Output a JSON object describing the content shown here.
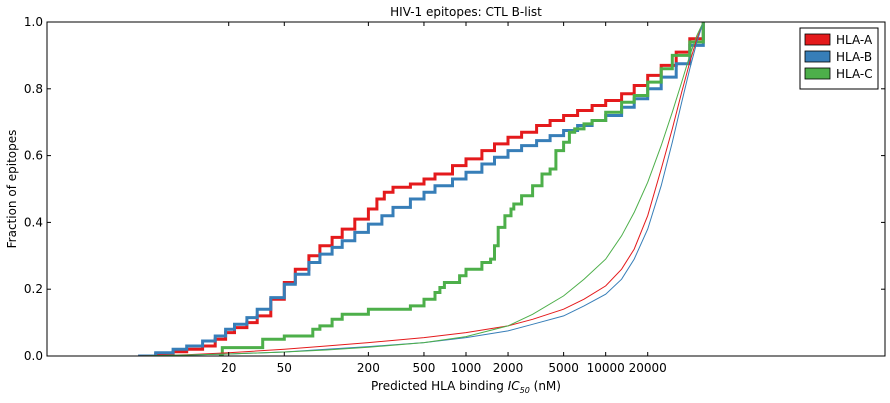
{
  "chart_data": {
    "type": "line",
    "title": "HIV-1 epitopes: CTL B-list",
    "xlabel_prefix": "Predicted HLA binding ",
    "xlabel_math": "IC",
    "xlabel_sub": "50",
    "xlabel_suffix": " (nM)",
    "ylabel": "Fraction of epitopes",
    "x_scale": "log",
    "xlim": [
      1,
      1000000
    ],
    "ylim": [
      0,
      1.0
    ],
    "x_ticks": [
      20,
      50,
      200,
      500,
      1000,
      2000,
      5000,
      10000,
      20000
    ],
    "x_tick_labels": [
      "20",
      "50",
      "200",
      "500",
      "1000",
      "2000",
      "5000",
      "10000",
      "20000"
    ],
    "y_ticks": [
      0.0,
      0.2,
      0.4,
      0.6,
      0.8,
      1.0
    ],
    "y_tick_labels": [
      "0.0",
      "0.2",
      "0.4",
      "0.6",
      "0.8",
      "1.0"
    ],
    "legend_position": "top-right",
    "series": [
      {
        "name": "HLA-A",
        "color": "#e41a1c",
        "kind": "empirical",
        "x": [
          4.5,
          6,
          8,
          10,
          13,
          16,
          19,
          22,
          27,
          32,
          40,
          50,
          60,
          75,
          90,
          110,
          130,
          160,
          200,
          230,
          260,
          300,
          400,
          500,
          600,
          800,
          1000,
          1300,
          1600,
          2000,
          2500,
          3200,
          4000,
          5000,
          6300,
          8000,
          10000,
          13000,
          16000,
          20000,
          25000,
          32000,
          40000,
          50000
        ],
        "y": [
          0.0,
          0.006,
          0.013,
          0.02,
          0.03,
          0.05,
          0.07,
          0.085,
          0.1,
          0.12,
          0.17,
          0.22,
          0.26,
          0.3,
          0.33,
          0.355,
          0.38,
          0.41,
          0.44,
          0.47,
          0.49,
          0.505,
          0.515,
          0.53,
          0.545,
          0.57,
          0.59,
          0.615,
          0.635,
          0.655,
          0.67,
          0.69,
          0.705,
          0.72,
          0.735,
          0.75,
          0.765,
          0.785,
          0.81,
          0.84,
          0.87,
          0.91,
          0.95,
          1.0
        ]
      },
      {
        "name": "HLA-B",
        "color": "#377eb8",
        "kind": "empirical",
        "x": [
          4.5,
          6,
          8,
          10,
          13,
          16,
          19,
          22,
          27,
          32,
          40,
          50,
          60,
          75,
          90,
          110,
          130,
          160,
          200,
          250,
          300,
          400,
          500,
          600,
          800,
          1000,
          1300,
          1600,
          2000,
          2500,
          3200,
          4000,
          5000,
          6300,
          8000,
          10000,
          13000,
          16000,
          20000,
          25000,
          32000,
          40000,
          50000
        ],
        "y": [
          0.0,
          0.01,
          0.02,
          0.03,
          0.045,
          0.06,
          0.08,
          0.095,
          0.115,
          0.14,
          0.175,
          0.215,
          0.245,
          0.28,
          0.305,
          0.325,
          0.345,
          0.37,
          0.395,
          0.42,
          0.445,
          0.47,
          0.49,
          0.51,
          0.53,
          0.55,
          0.575,
          0.595,
          0.615,
          0.63,
          0.645,
          0.66,
          0.675,
          0.69,
          0.705,
          0.72,
          0.745,
          0.77,
          0.8,
          0.835,
          0.875,
          0.93,
          1.0
        ]
      },
      {
        "name": "HLA-C",
        "color": "#4daf4a",
        "kind": "empirical",
        "x": [
          17,
          18,
          35,
          50,
          80,
          90,
          110,
          130,
          200,
          400,
          500,
          600,
          650,
          700,
          900,
          1000,
          1300,
          1500,
          1600,
          1700,
          1900,
          2100,
          2200,
          2500,
          3000,
          3500,
          4000,
          4400,
          5000,
          5500,
          6000,
          7000,
          8000,
          10000,
          13000,
          16000,
          20000,
          25000,
          30000,
          40000,
          50000
        ],
        "y": [
          0.0,
          0.025,
          0.05,
          0.06,
          0.08,
          0.09,
          0.11,
          0.125,
          0.14,
          0.15,
          0.17,
          0.19,
          0.205,
          0.22,
          0.24,
          0.26,
          0.28,
          0.29,
          0.33,
          0.385,
          0.42,
          0.44,
          0.455,
          0.48,
          0.51,
          0.545,
          0.56,
          0.615,
          0.64,
          0.67,
          0.68,
          0.695,
          0.705,
          0.73,
          0.76,
          0.78,
          0.82,
          0.86,
          0.9,
          0.94,
          1.0
        ]
      },
      {
        "name": "HLA-A",
        "color": "#e41a1c",
        "kind": "background",
        "x": [
          4.5,
          10,
          20,
          50,
          100,
          200,
          500,
          1000,
          2000,
          3000,
          5000,
          7000,
          10000,
          13000,
          16000,
          20000,
          25000,
          30000,
          35000,
          40000,
          45000,
          50000
        ],
        "y": [
          0.0,
          0.004,
          0.01,
          0.02,
          0.03,
          0.04,
          0.055,
          0.07,
          0.09,
          0.11,
          0.14,
          0.17,
          0.21,
          0.26,
          0.32,
          0.42,
          0.56,
          0.68,
          0.79,
          0.88,
          0.95,
          1.0
        ]
      },
      {
        "name": "HLA-B",
        "color": "#377eb8",
        "kind": "background",
        "x": [
          4.5,
          10,
          20,
          50,
          100,
          200,
          500,
          1000,
          2000,
          3000,
          5000,
          7000,
          10000,
          13000,
          16000,
          20000,
          25000,
          30000,
          35000,
          40000,
          45000,
          50000
        ],
        "y": [
          0.0,
          0.003,
          0.006,
          0.012,
          0.02,
          0.028,
          0.04,
          0.055,
          0.075,
          0.095,
          0.12,
          0.15,
          0.185,
          0.23,
          0.29,
          0.38,
          0.51,
          0.64,
          0.76,
          0.86,
          0.94,
          1.0
        ]
      },
      {
        "name": "HLA-C",
        "color": "#4daf4a",
        "kind": "background",
        "x": [
          4.5,
          10,
          20,
          50,
          100,
          200,
          500,
          1000,
          2000,
          3000,
          5000,
          7000,
          10000,
          13000,
          16000,
          20000,
          25000,
          30000,
          35000,
          40000,
          45000,
          50000
        ],
        "y": [
          0.0,
          0.003,
          0.006,
          0.012,
          0.018,
          0.026,
          0.04,
          0.058,
          0.09,
          0.125,
          0.18,
          0.23,
          0.29,
          0.36,
          0.43,
          0.52,
          0.63,
          0.73,
          0.82,
          0.9,
          0.96,
          1.0
        ]
      }
    ]
  }
}
